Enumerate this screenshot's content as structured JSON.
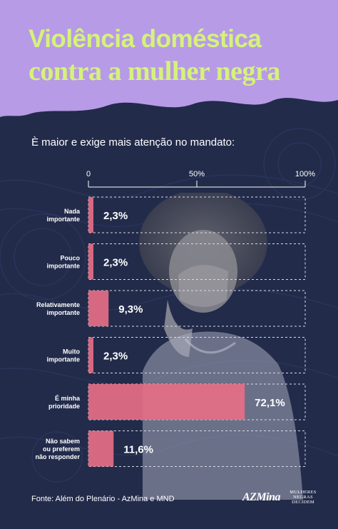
{
  "header": {
    "title_line1": "Violência doméstica",
    "title_line2": "contra a mulher negra"
  },
  "subtitle": "È maior e exige mais atenção no mandato:",
  "colors": {
    "background": "#222b4a",
    "header_band": "#b79be6",
    "title": "#d6f27a",
    "bar": "#e66e85"
  },
  "chart_data": {
    "type": "bar",
    "orientation": "horizontal",
    "categories": [
      "Nada importante",
      "Pouco importante",
      "Relativamente importante",
      "Muito importante",
      "É minha prioridade",
      "Não sabem ou preferem não responder"
    ],
    "category_lines": [
      [
        "Nada",
        "importante"
      ],
      [
        "Pouco",
        "importante"
      ],
      [
        "Relativamente",
        "importante"
      ],
      [
        "Muito",
        "importante"
      ],
      [
        "É minha",
        "prioridade"
      ],
      [
        "Não sabem",
        "ou preferem",
        "não responder"
      ]
    ],
    "values": [
      2.3,
      2.3,
      9.3,
      2.3,
      72.1,
      11.6
    ],
    "value_labels": [
      "2,3%",
      "2,3%",
      "9,3%",
      "2,3%",
      "72,1%",
      "11,6%"
    ],
    "xlim": [
      0,
      100
    ],
    "ticks": [
      0,
      50,
      100
    ],
    "tick_labels": [
      "0",
      "50%",
      "100%"
    ],
    "grid": false
  },
  "footer": {
    "source": "Fonte: Além do Plenário - AzMina e MND",
    "logo_azmina": "AZMina",
    "logo_mnd_lines": [
      "MULHERES",
      "NEGRAS",
      "DECIDEM"
    ]
  }
}
